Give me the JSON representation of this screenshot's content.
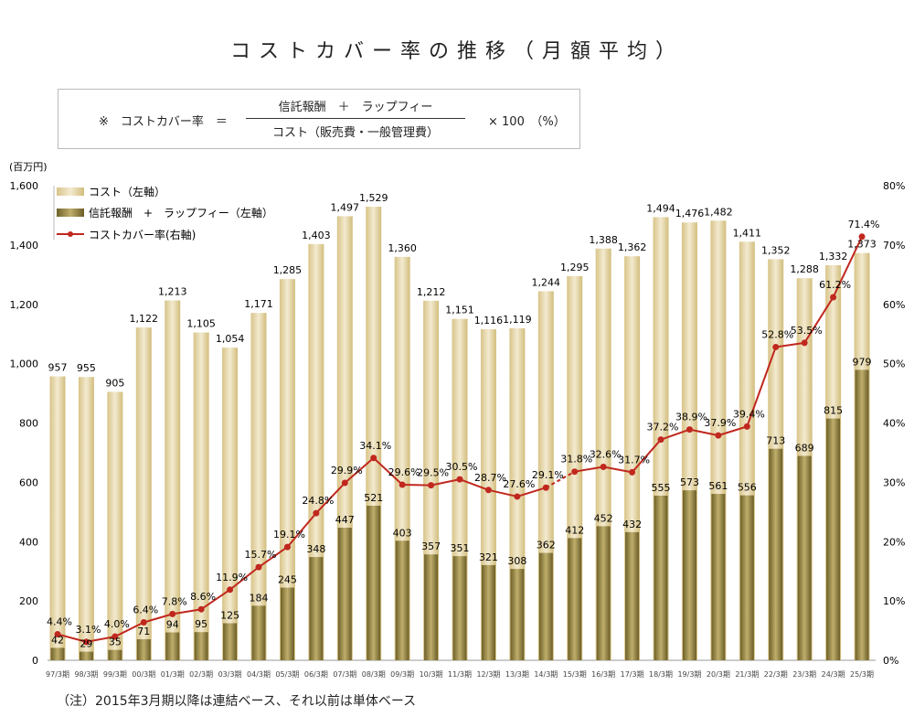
{
  "title": "コストカバー率の推移（月額平均）",
  "formula": {
    "lead": "※　コストカバー率　＝",
    "numerator": "信託報酬　＋　ラップフィー",
    "denominator": "コスト（販売費・一般管理費）",
    "tail": "× 100　（%）"
  },
  "note": "（注）2015年3月期以降は連結ベース、それ以前は単体ベース",
  "chart_data": {
    "type": "bar+line",
    "title": "",
    "ylabel_left": "(百万円)",
    "ylim_left": [
      0,
      1600
    ],
    "yticks_left": [
      "0",
      "200",
      "400",
      "600",
      "800",
      "1,000",
      "1,200",
      "1,400",
      "1,600"
    ],
    "ylim_right": [
      0,
      80
    ],
    "yticks_right": [
      "0%",
      "10%",
      "20%",
      "30%",
      "40%",
      "50%",
      "60%",
      "70%",
      "80%"
    ],
    "grid": false,
    "legend_placement": "top-left",
    "categories": [
      "97/3期",
      "98/3期",
      "99/3期",
      "00/3期",
      "01/3期",
      "02/3期",
      "03/3期",
      "04/3期",
      "05/3期",
      "06/3期",
      "07/3期",
      "08/3期",
      "09/3期",
      "10/3期",
      "11/3期",
      "12/3期",
      "13/3期",
      "14/3期",
      "15/3期",
      "16/3期",
      "17/3期",
      "18/3期",
      "19/3期",
      "20/3期",
      "21/3期",
      "22/3期",
      "23/3期",
      "24/3期",
      "25/3期"
    ],
    "series": [
      {
        "name": "コスト（左軸）",
        "axis": "left",
        "type": "bar",
        "color": "#e3d3a0",
        "values": [
          957,
          955,
          905,
          1122,
          1213,
          1105,
          1054,
          1171,
          1285,
          1403,
          1497,
          1529,
          1360,
          1212,
          1151,
          1116,
          1119,
          1244,
          1295,
          1388,
          1362,
          1494,
          1476,
          1482,
          1411,
          1352,
          1288,
          1332,
          1373
        ]
      },
      {
        "name": "信託報酬　+　ラップフィー（左軸）",
        "axis": "left",
        "type": "bar",
        "color": "#8c7c3c",
        "values": [
          42,
          29,
          35,
          71,
          94,
          95,
          125,
          184,
          245,
          348,
          447,
          521,
          403,
          357,
          351,
          321,
          308,
          362,
          412,
          452,
          432,
          555,
          573,
          561,
          556,
          713,
          689,
          815,
          979
        ]
      },
      {
        "name": "コストカバー率(右軸)",
        "axis": "right",
        "type": "line",
        "color": "#c0281e",
        "values": [
          4.4,
          3.1,
          4.0,
          6.4,
          7.8,
          8.6,
          11.9,
          15.7,
          19.1,
          24.8,
          29.9,
          34.1,
          29.6,
          29.5,
          30.5,
          28.7,
          27.6,
          29.1,
          31.8,
          32.6,
          31.7,
          37.2,
          38.9,
          37.9,
          39.4,
          52.8,
          53.5,
          61.2,
          71.4
        ]
      }
    ],
    "dashed_segment": [
      "14/3期",
      "15/3期"
    ]
  }
}
